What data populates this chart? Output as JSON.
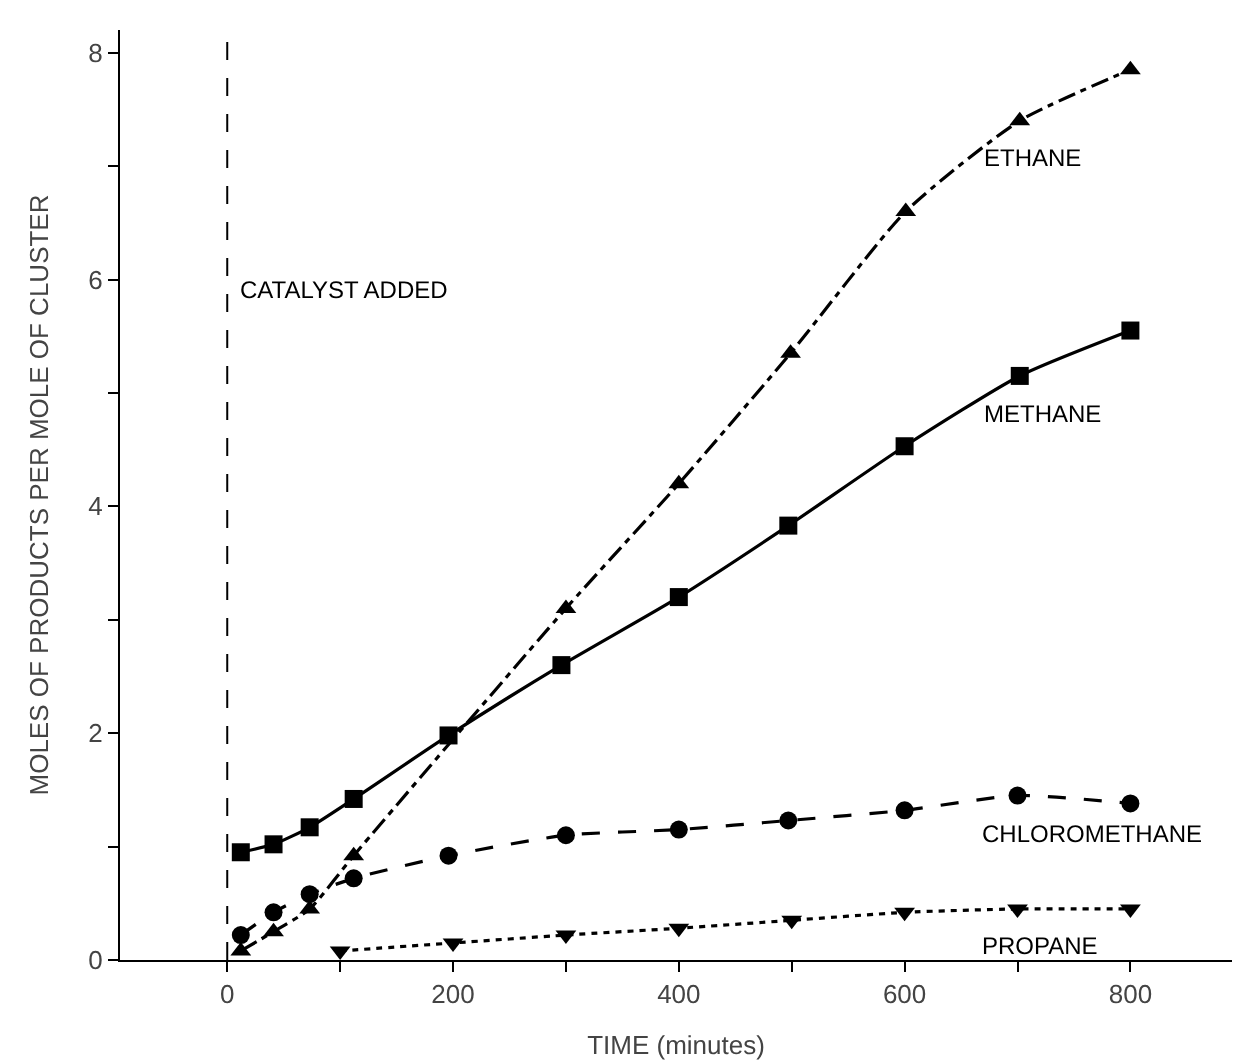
{
  "chart_data": {
    "type": "line",
    "xlabel": "TIME (minutes)",
    "ylabel": "MOLES OF PRODUCTS PER MOLE OF CLUSTER",
    "xlim": [
      -95,
      890
    ],
    "xticks": [
      0,
      {
        "value": 100,
        "label": null
      },
      200,
      {
        "value": 300,
        "label": null
      },
      400,
      {
        "value": 500,
        "label": null
      },
      600,
      {
        "value": 700,
        "label": null
      },
      800
    ],
    "ylim": [
      0,
      8.2
    ],
    "yticks": [
      0,
      {
        "value": 1,
        "label": null
      },
      2,
      {
        "value": 3,
        "label": null
      },
      4,
      {
        "value": 5,
        "label": null
      },
      6,
      {
        "value": 7,
        "label": null
      },
      8
    ],
    "grid": false,
    "legend": false,
    "series": [
      {
        "name": "ETHANE",
        "color": "#000000",
        "marker": "triangle",
        "line_style": "dashdot",
        "x": [
          12,
          41,
          73,
          112,
          300,
          400,
          499,
          601,
          702,
          800
        ],
        "values": [
          0.08,
          0.25,
          0.45,
          0.92,
          3.1,
          4.2,
          5.35,
          6.6,
          7.4,
          7.85
        ]
      },
      {
        "name": "METHANE",
        "color": "#000000",
        "marker": "square",
        "line_style": "solid",
        "x": [
          12,
          41,
          73,
          112,
          196,
          296,
          400,
          497,
          600,
          702,
          800
        ],
        "values": [
          0.95,
          1.02,
          1.17,
          1.42,
          1.98,
          2.6,
          3.2,
          3.83,
          4.53,
          5.15,
          5.55
        ]
      },
      {
        "name": "CHLOROMETHANE",
        "color": "#000000",
        "marker": "circle",
        "line_style": "dashed",
        "x": [
          12,
          41,
          73,
          112,
          196,
          300,
          400,
          497,
          600,
          700,
          800
        ],
        "values": [
          0.22,
          0.42,
          0.58,
          0.72,
          0.92,
          1.1,
          1.15,
          1.23,
          1.32,
          1.45,
          1.38
        ]
      },
      {
        "name": "PROPANE",
        "color": "#000000",
        "marker": "triangle-down",
        "line_style": "dotted",
        "x": [
          100,
          200,
          300,
          400,
          500,
          600,
          700,
          800
        ],
        "values": [
          0.08,
          0.15,
          0.22,
          0.28,
          0.35,
          0.42,
          0.45,
          0.45
        ]
      }
    ],
    "ref_lines": [
      {
        "axis": "x",
        "value": 0,
        "label": "CATALYST ADDED",
        "line_style": "dashed",
        "color": "#000000"
      }
    ]
  }
}
